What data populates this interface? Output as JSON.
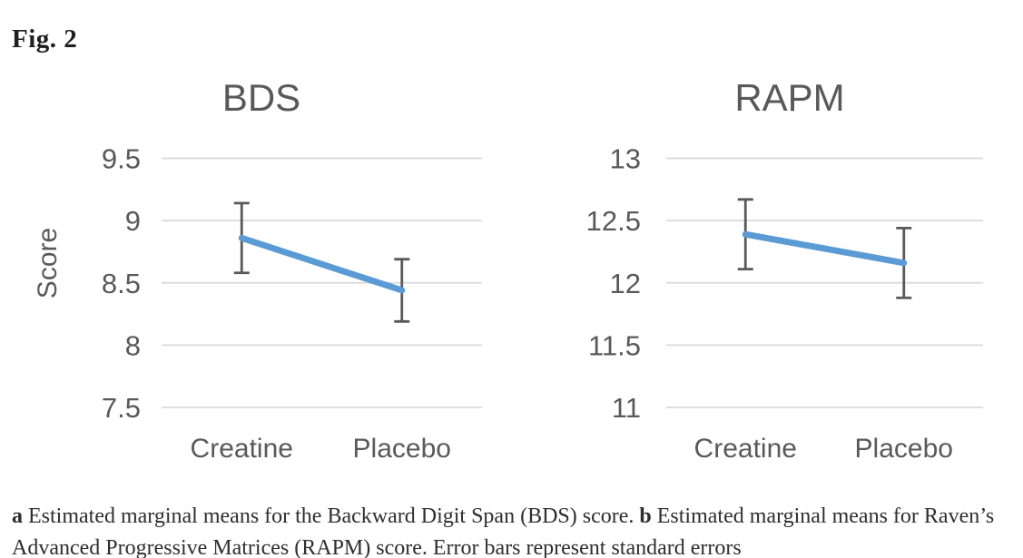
{
  "figure_label": "Fig. 2",
  "caption": {
    "segments": [
      {
        "text": "a",
        "bold": true
      },
      {
        "text": " Estimated marginal means for the Backward Digit Span (BDS) score. ",
        "bold": false
      },
      {
        "text": "b",
        "bold": true
      },
      {
        "text": " Estimated marginal means for Raven’s Advanced Progressive Matrices (RAPM) score. Error bars represent standard errors",
        "bold": false
      }
    ]
  },
  "chart_data": [
    {
      "type": "line",
      "title": "BDS",
      "ylabel": "Score",
      "xlabel": "",
      "categories": [
        "Creatine",
        "Placebo"
      ],
      "series": [
        {
          "name": "Estimated marginal mean",
          "values": [
            8.86,
            8.44
          ],
          "stderr": [
            0.28,
            0.25
          ]
        }
      ],
      "ytick_labels": [
        "9.5",
        "9",
        "8.5",
        "8",
        "7.5"
      ],
      "ylim": [
        7.5,
        9.5
      ],
      "grid": true,
      "legend": false,
      "error_bars": "standard errors",
      "colors": {
        "line": "#5b9bd5",
        "error_bar": "#595959",
        "grid": "#d9d9d9",
        "text": "#595959"
      }
    },
    {
      "type": "line",
      "title": "RAPM",
      "ylabel": "",
      "xlabel": "",
      "categories": [
        "Creatine",
        "Placebo"
      ],
      "series": [
        {
          "name": "Estimated marginal mean",
          "values": [
            12.39,
            12.16
          ],
          "stderr": [
            0.28,
            0.28
          ]
        }
      ],
      "ytick_labels": [
        "13",
        "12.5",
        "12",
        "11.5",
        "11"
      ],
      "ylim": [
        11,
        13
      ],
      "grid": true,
      "legend": false,
      "error_bars": "standard errors",
      "colors": {
        "line": "#5b9bd5",
        "error_bar": "#595959",
        "grid": "#d9d9d9",
        "text": "#595959"
      }
    }
  ]
}
